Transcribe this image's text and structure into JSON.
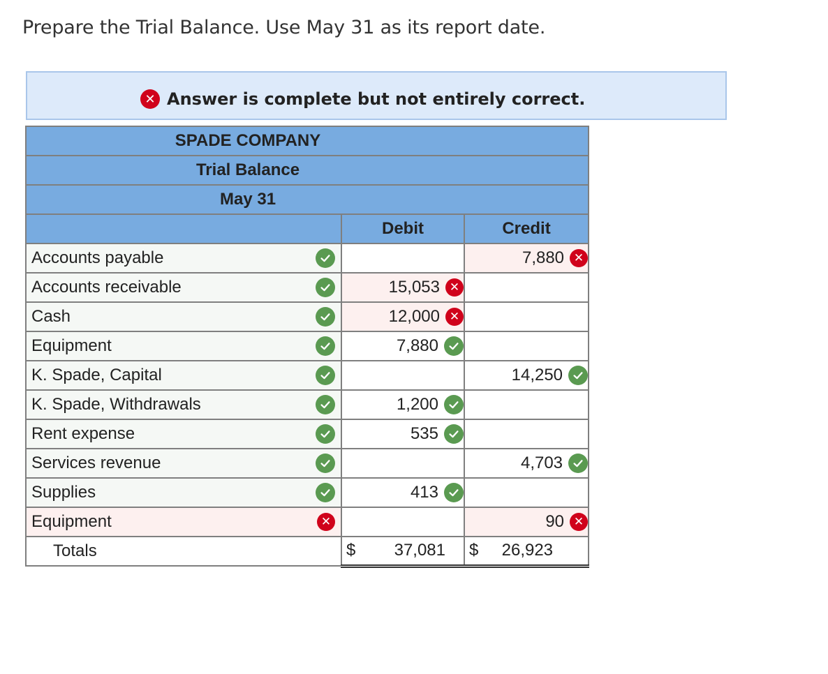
{
  "instruction": "Prepare the Trial Balance. Use May 31 as its report date.",
  "banner": {
    "text": "Answer is complete but not entirely correct.",
    "status": "incorrect"
  },
  "header": {
    "company": "SPADE COMPANY",
    "title": "Trial Balance",
    "date": "May 31"
  },
  "columns": {
    "debit": "Debit",
    "credit": "Credit"
  },
  "rows": [
    {
      "account": "Accounts payable",
      "account_ok": true,
      "debit": "",
      "credit": "7,880",
      "credit_ok": false
    },
    {
      "account": "Accounts receivable",
      "account_ok": true,
      "debit": "15,053",
      "debit_ok": false,
      "credit": ""
    },
    {
      "account": "Cash",
      "account_ok": true,
      "debit": "12,000",
      "debit_ok": false,
      "credit": ""
    },
    {
      "account": "Equipment",
      "account_ok": true,
      "debit": "7,880",
      "debit_ok": true,
      "credit": ""
    },
    {
      "account": "K. Spade, Capital",
      "account_ok": true,
      "debit": "",
      "credit": "14,250",
      "credit_ok": true
    },
    {
      "account": "K. Spade, Withdrawals",
      "account_ok": true,
      "debit": "1,200",
      "debit_ok": true,
      "credit": ""
    },
    {
      "account": "Rent expense",
      "account_ok": true,
      "debit": "535",
      "debit_ok": true,
      "credit": ""
    },
    {
      "account": "Services revenue",
      "account_ok": true,
      "debit": "",
      "credit": "4,703",
      "credit_ok": true
    },
    {
      "account": "Supplies",
      "account_ok": true,
      "debit": "413",
      "debit_ok": true,
      "credit": ""
    },
    {
      "account": "Equipment",
      "account_ok": false,
      "debit": "",
      "credit": "90",
      "credit_ok": false
    }
  ],
  "totals": {
    "label": "Totals",
    "currency": "$",
    "debit": "37,081",
    "credit": "26,923"
  },
  "colors": {
    "header_blue": "#78abe0",
    "banner_bg": "#ddeafa",
    "correct_green": "#5a9a51",
    "incorrect_red": "#d0021b"
  }
}
